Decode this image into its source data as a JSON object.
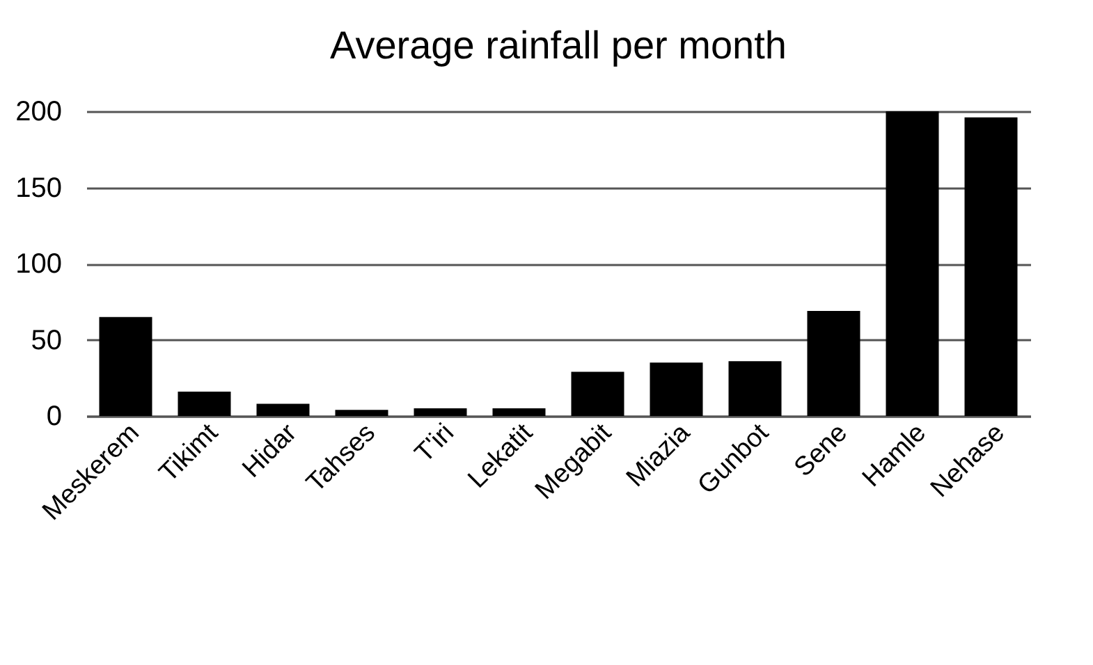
{
  "chart_data": {
    "type": "bar",
    "title": "Average rainfall per month",
    "categories": [
      "Meskerem",
      "Tikimt",
      "Hidar",
      "Tahses",
      "T'iri",
      "Lekatit",
      "Megabit",
      "Miazia",
      "Gunbot",
      "Sene",
      "Hamle",
      "Nehase"
    ],
    "values": [
      65,
      16,
      8,
      4,
      5,
      5,
      29,
      35,
      36,
      69,
      200,
      196
    ],
    "color": "#000000",
    "ylim": [
      0,
      200
    ],
    "yticks": [
      0,
      50,
      100,
      150,
      200
    ],
    "grid": "y"
  }
}
